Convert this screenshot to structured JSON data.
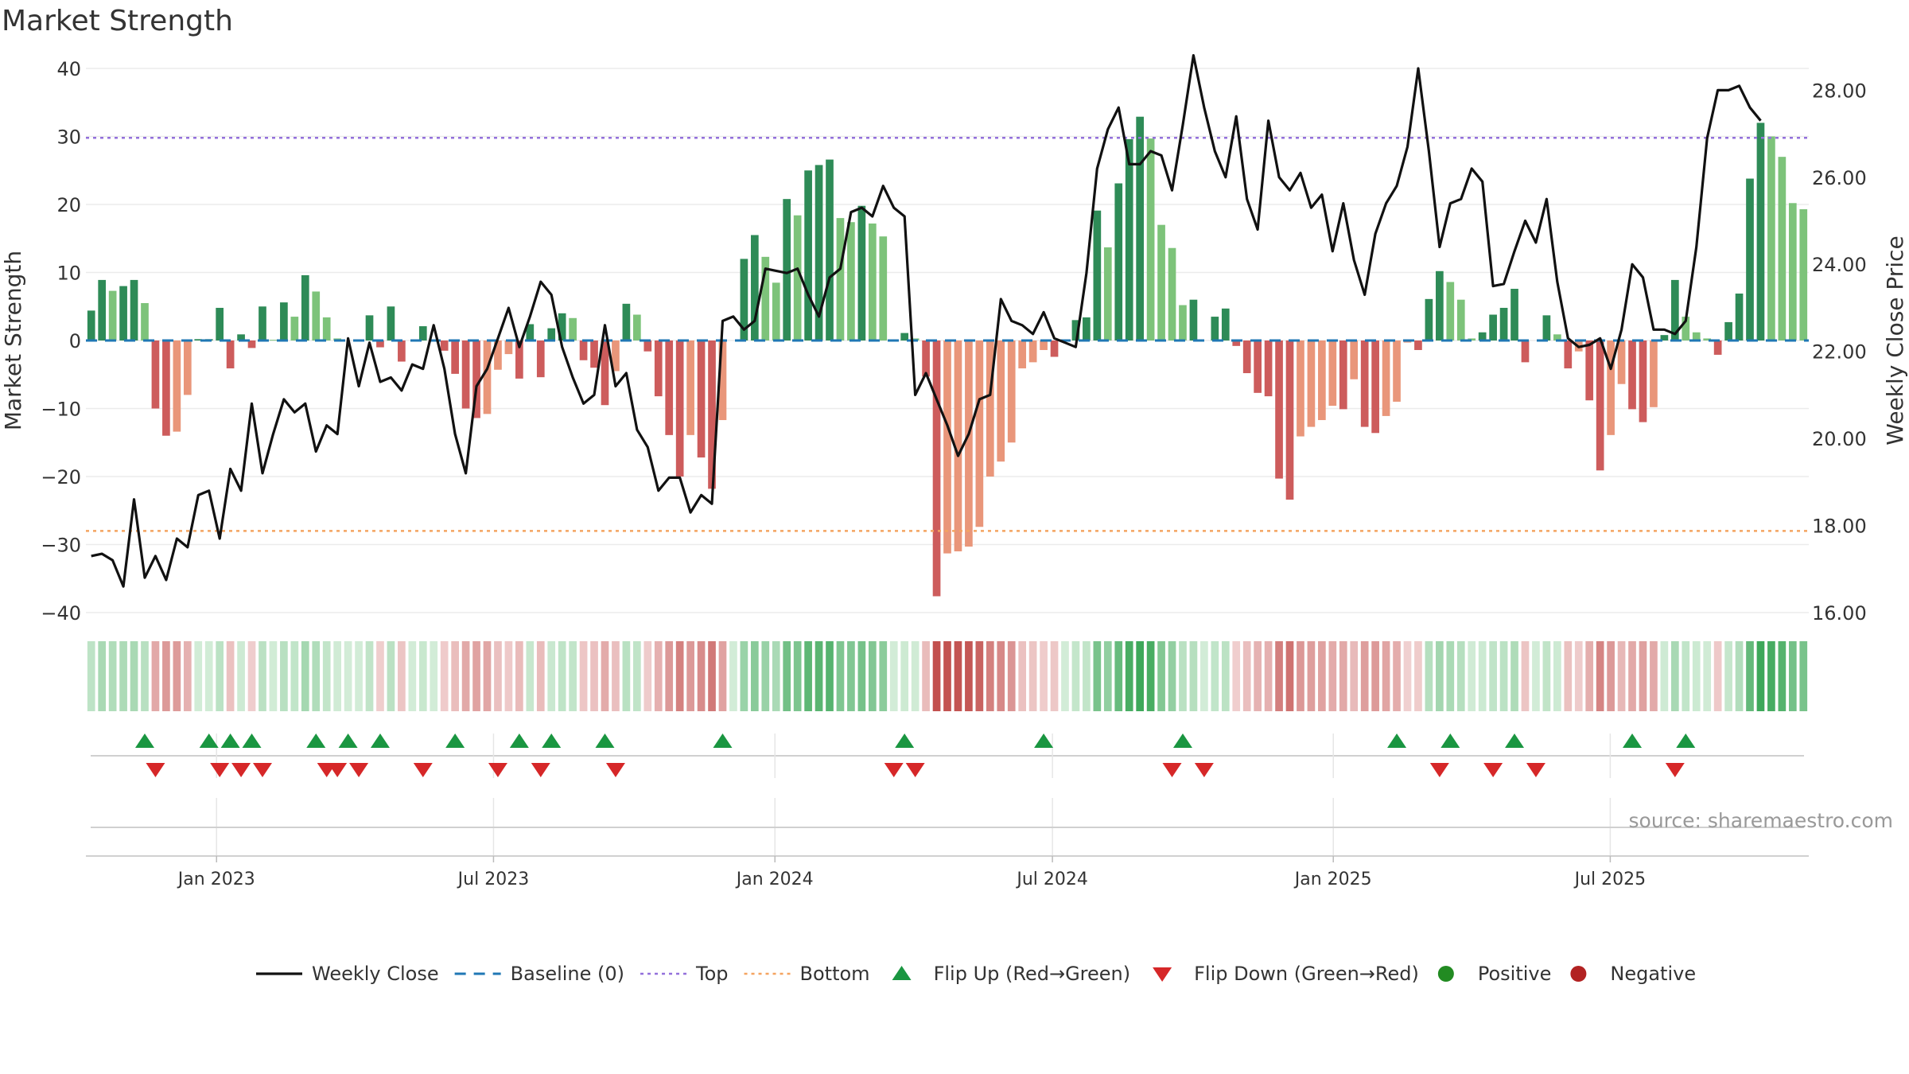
{
  "chart_data": {
    "type": "bar",
    "title": "Market Strength",
    "source_note": "source: sharemaestro.com",
    "left_axis": {
      "label": "Market Strength",
      "min": -40,
      "max": 40,
      "ticks": [
        40,
        30,
        20,
        10,
        0,
        -10,
        -20,
        -30,
        -40
      ],
      "tick_labels": [
        "40",
        "30",
        "20",
        "10",
        "0",
        "−10",
        "−20",
        "−30",
        "−40"
      ]
    },
    "right_axis": {
      "label": "Weekly Close Price",
      "min": 16,
      "max": 28.5,
      "ticks": [
        16,
        18,
        20,
        22,
        24,
        26,
        28
      ],
      "tick_labels": [
        "16.00",
        "18.00",
        "20.00",
        "22.00",
        "24.00",
        "26.00",
        "28.00"
      ]
    },
    "x_axis": {
      "start_week": 2022.766,
      "week_length_years": 0.019165,
      "ticks": [
        {
          "label": "Jan 2023",
          "pos": 2023.0
        },
        {
          "label": "Jul 2023",
          "pos": 2023.496
        },
        {
          "label": "Jan 2024",
          "pos": 2024.0
        },
        {
          "label": "Jul 2024",
          "pos": 2024.497
        },
        {
          "label": "Jan 2025",
          "pos": 2025.0
        },
        {
          "label": "Jul 2025",
          "pos": 2025.496
        }
      ]
    },
    "reference_lines": {
      "baseline": 0,
      "top": 29.8,
      "bottom": -28
    },
    "colors": {
      "strong_green": "#2e8b57",
      "light_green": "#7dc37a",
      "strong_red": "#cd5c5c",
      "light_red": "#e9967a",
      "baseline": "#1f77b4",
      "top": "#9370db",
      "bottom": "#f4a460",
      "close_line": "#111111",
      "flip_up": "#1a9641",
      "flip_down": "#d62728",
      "positive": "#228b22",
      "negative": "#b22222"
    },
    "strength": [
      4.4,
      8.9,
      7.3,
      8.0,
      8.9,
      5.5,
      -10,
      -14,
      -13.4,
      -8,
      0.2,
      0.2,
      4.8,
      -4.1,
      0.9,
      -1.1,
      5,
      0.1,
      5.6,
      3.5,
      9.6,
      7.2,
      3.4,
      0.3,
      0,
      0,
      3.7,
      -1,
      5,
      -3.1,
      0,
      2.1,
      0,
      -1.5,
      -4.9,
      -10,
      -11.4,
      -10.8,
      -4.3,
      -2,
      -5.6,
      2.4,
      -5.4,
      1.8,
      4,
      3.3,
      -2.9,
      -4,
      -9.5,
      -4.5,
      5.4,
      3.8,
      -1.6,
      -8.2,
      -13.9,
      -20,
      -13.9,
      -17.2,
      -21.8,
      -11.7,
      0,
      12,
      15.5,
      12.3,
      8.5,
      20.8,
      18.4,
      25,
      25.8,
      26.6,
      18,
      17.4,
      19.8,
      17.2,
      15.3,
      0,
      1.1,
      0.3,
      -5.3,
      -37.6,
      -31.3,
      -31,
      -30.3,
      -27.4,
      -20,
      -17.8,
      -15,
      -4.1,
      -3.2,
      -1.4,
      -2.4,
      0,
      3,
      3.4,
      19.1,
      13.7,
      23.1,
      29.6,
      32.9,
      29.7,
      17,
      13.6,
      5.2,
      6,
      0,
      3.5,
      4.7,
      -0.8,
      -4.8,
      -7.7,
      -8.2,
      -20.3,
      -23.4,
      -14.1,
      -12.7,
      -11.7,
      -9.6,
      -10.1,
      -5.7,
      -12.7,
      -13.6,
      -11.1,
      -9,
      -0.3,
      -1.4,
      6.1,
      10.2,
      8.6,
      6,
      0.3,
      1.2,
      3.8,
      4.8,
      7.6,
      -3.2,
      0,
      3.7,
      0.9,
      -4.1,
      -1.6,
      -8.8,
      -19.1,
      -13.9,
      -6.4,
      -10.1,
      -12,
      -9.8,
      0.8,
      8.9,
      3.5,
      1.2,
      0.3,
      -2.1,
      2.7,
      6.9,
      23.8,
      32,
      30,
      27,
      20.2,
      19.3
    ],
    "close": [
      17.3,
      17.35,
      17.2,
      16.6,
      18.6,
      16.8,
      17.3,
      16.75,
      17.7,
      17.5,
      18.7,
      18.8,
      17.7,
      19.3,
      18.8,
      20.8,
      19.2,
      20.1,
      20.9,
      20.6,
      20.8,
      19.7,
      20.3,
      20.1,
      22.3,
      21.2,
      22.2,
      21.3,
      21.4,
      21.1,
      21.7,
      21.6,
      22.6,
      21.6,
      20.1,
      19.2,
      21.2,
      21.6,
      22.3,
      23,
      22.1,
      22.8,
      23.6,
      23.3,
      22.1,
      21.4,
      20.8,
      21,
      22.6,
      21.2,
      21.5,
      20.2,
      19.8,
      18.8,
      19.1,
      19.1,
      18.3,
      18.7,
      18.5,
      22.7,
      22.8,
      22.5,
      22.7,
      23.9,
      23.85,
      23.8,
      23.9,
      23.3,
      22.8,
      23.7,
      23.9,
      25.2,
      25.3,
      25.1,
      25.8,
      25.3,
      25.1,
      21,
      21.5,
      20.9,
      20.3,
      19.6,
      20.1,
      20.9,
      21,
      23.2,
      22.7,
      22.6,
      22.4,
      22.9,
      22.3,
      22.2,
      22.1,
      23.8,
      26.2,
      27.1,
      27.6,
      26.3,
      26.3,
      26.6,
      26.5,
      25.7,
      27.2,
      28.8,
      27.6,
      26.6,
      26.0,
      27.4,
      25.5,
      24.8,
      27.3,
      26.0,
      25.7,
      26.1,
      25.3,
      25.6,
      24.3,
      25.4,
      24.1,
      23.3,
      24.7,
      25.4,
      25.8,
      26.7,
      28.5,
      26.6,
      24.4,
      25.4,
      25.5,
      26.2,
      25.9,
      23.5,
      23.55,
      24.3,
      25.0,
      24.5,
      25.5,
      23.6,
      22.3,
      22.1,
      22.15,
      22.3,
      21.6,
      22.5,
      24.0,
      23.7,
      22.5,
      22.5,
      22.4,
      22.7,
      24.4,
      26.9,
      28.0,
      28.0,
      28.1,
      27.6,
      27.3
    ],
    "flip_up_weeks": [
      5,
      11,
      13,
      15,
      21,
      24,
      27,
      34,
      40,
      43,
      48,
      59,
      76,
      89,
      102,
      122,
      127,
      133,
      144,
      149
    ],
    "flip_down_weeks": [
      6,
      12,
      14,
      16,
      22,
      23,
      25,
      31,
      38,
      42,
      49,
      75,
      77,
      101,
      104,
      126,
      131,
      135,
      148
    ],
    "legend": [
      "Weekly Close",
      "Baseline (0)",
      "Top",
      "Bottom",
      "Flip Up (Red→Green)",
      "Flip Down (Green→Red)",
      "Positive",
      "Negative"
    ]
  }
}
